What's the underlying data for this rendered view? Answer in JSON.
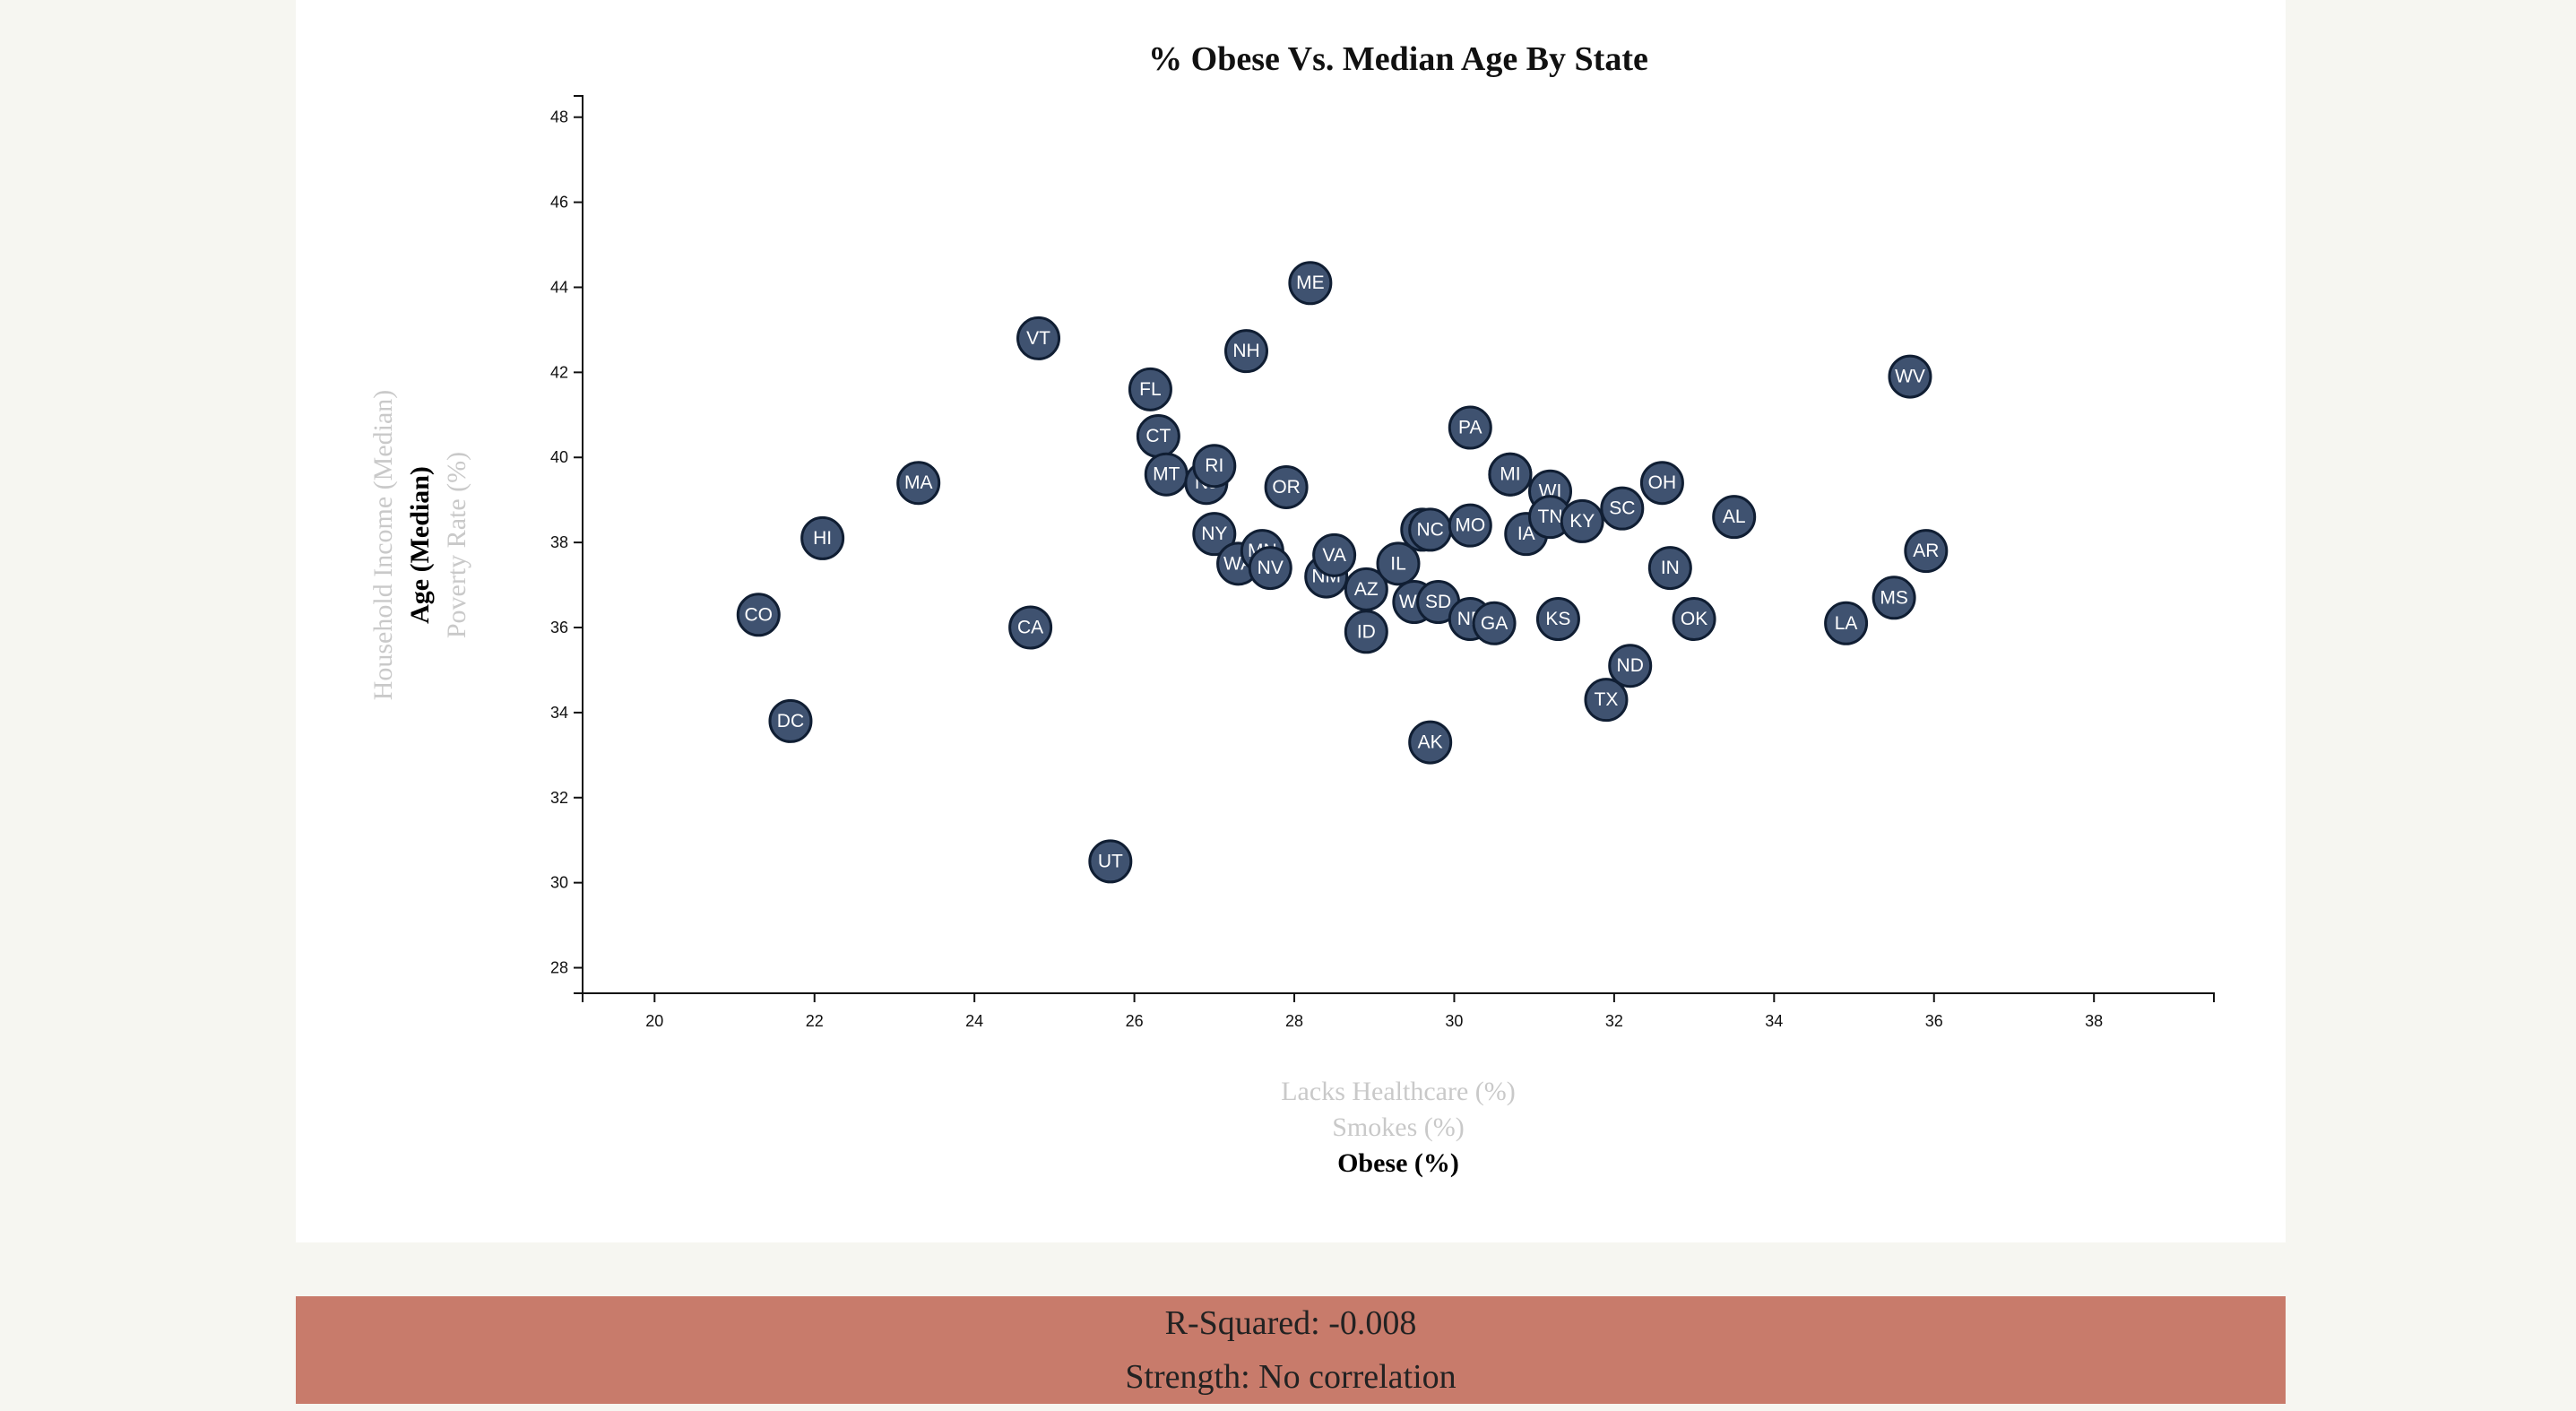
{
  "chart_data": {
    "type": "scatter",
    "title": "% Obese Vs. Median Age By State",
    "xlabel": "Obese (%)",
    "ylabel": "Age (Median)",
    "x_axis_options": [
      "Lacks Healthcare (%)",
      "Smokes (%)",
      "Obese (%)"
    ],
    "y_axis_options": [
      "Household Income (Median)",
      "Age (Median)",
      "Poverty Rate (%)"
    ],
    "active_x": "Obese (%)",
    "active_y": "Age (Median)",
    "xlim": [
      19.1,
      39.5
    ],
    "ylim": [
      27.4,
      48.5
    ],
    "x_ticks": [
      20,
      22,
      24,
      26,
      28,
      30,
      32,
      34,
      36,
      38
    ],
    "y_ticks": [
      28,
      30,
      32,
      34,
      36,
      38,
      40,
      42,
      44,
      46,
      48
    ],
    "points": [
      {
        "label": "CO",
        "x": 21.3,
        "y": 36.3
      },
      {
        "label": "DC",
        "x": 21.7,
        "y": 33.8
      },
      {
        "label": "HI",
        "x": 22.1,
        "y": 38.1
      },
      {
        "label": "MA",
        "x": 23.3,
        "y": 39.4
      },
      {
        "label": "CA",
        "x": 24.7,
        "y": 36.0
      },
      {
        "label": "VT",
        "x": 24.8,
        "y": 42.8
      },
      {
        "label": "UT",
        "x": 25.7,
        "y": 30.5
      },
      {
        "label": "FL",
        "x": 26.2,
        "y": 41.6
      },
      {
        "label": "CT",
        "x": 26.3,
        "y": 40.5
      },
      {
        "label": "MT",
        "x": 26.4,
        "y": 39.6
      },
      {
        "label": "NJ",
        "x": 26.9,
        "y": 39.4
      },
      {
        "label": "RI",
        "x": 27.0,
        "y": 39.8
      },
      {
        "label": "NY",
        "x": 27.0,
        "y": 38.2
      },
      {
        "label": "WA",
        "x": 27.3,
        "y": 37.5
      },
      {
        "label": "NH",
        "x": 27.4,
        "y": 42.5
      },
      {
        "label": "MN",
        "x": 27.6,
        "y": 37.8
      },
      {
        "label": "NV",
        "x": 27.7,
        "y": 37.4
      },
      {
        "label": "OR",
        "x": 27.9,
        "y": 39.3
      },
      {
        "label": "ME",
        "x": 28.2,
        "y": 44.1
      },
      {
        "label": "NM",
        "x": 28.4,
        "y": 37.2
      },
      {
        "label": "VA",
        "x": 28.5,
        "y": 37.7
      },
      {
        "label": "AZ",
        "x": 28.9,
        "y": 36.9
      },
      {
        "label": "ID",
        "x": 28.9,
        "y": 35.9
      },
      {
        "label": "IL",
        "x": 29.3,
        "y": 37.5
      },
      {
        "label": "WY",
        "x": 29.5,
        "y": 36.6
      },
      {
        "label": "MD",
        "x": 29.6,
        "y": 38.3
      },
      {
        "label": "NC",
        "x": 29.7,
        "y": 38.3
      },
      {
        "label": "AK",
        "x": 29.7,
        "y": 33.3
      },
      {
        "label": "SD",
        "x": 29.8,
        "y": 36.6
      },
      {
        "label": "PA",
        "x": 30.2,
        "y": 40.7
      },
      {
        "label": "MO",
        "x": 30.2,
        "y": 38.4
      },
      {
        "label": "NE",
        "x": 30.2,
        "y": 36.2
      },
      {
        "label": "GA",
        "x": 30.5,
        "y": 36.1
      },
      {
        "label": "DE",
        "x": 30.7,
        "y": 39.6
      },
      {
        "label": "MI",
        "x": 30.7,
        "y": 39.6
      },
      {
        "label": "IA",
        "x": 30.9,
        "y": 38.2
      },
      {
        "label": "WI",
        "x": 31.2,
        "y": 39.2
      },
      {
        "label": "TN",
        "x": 31.2,
        "y": 38.6
      },
      {
        "label": "KS",
        "x": 31.3,
        "y": 36.2
      },
      {
        "label": "KY",
        "x": 31.6,
        "y": 38.5
      },
      {
        "label": "TX",
        "x": 31.9,
        "y": 34.3
      },
      {
        "label": "SC",
        "x": 32.1,
        "y": 38.8
      },
      {
        "label": "ND",
        "x": 32.2,
        "y": 35.1
      },
      {
        "label": "OH",
        "x": 32.6,
        "y": 39.4
      },
      {
        "label": "IN",
        "x": 32.7,
        "y": 37.4
      },
      {
        "label": "OK",
        "x": 33.0,
        "y": 36.2
      },
      {
        "label": "AL",
        "x": 33.5,
        "y": 38.6
      },
      {
        "label": "LA",
        "x": 34.9,
        "y": 36.1
      },
      {
        "label": "MS",
        "x": 35.5,
        "y": 36.7
      },
      {
        "label": "WV",
        "x": 35.7,
        "y": 41.9
      },
      {
        "label": "AR",
        "x": 35.9,
        "y": 37.8
      }
    ]
  },
  "stats": {
    "r_squared": "R-Squared: -0.008",
    "strength": "Strength: No correlation"
  },
  "colors": {
    "marker_fill": "#3f5270",
    "marker_stroke": "#101e33",
    "stats_background": "#c87b6b",
    "page_background": "#f6f6f1"
  }
}
